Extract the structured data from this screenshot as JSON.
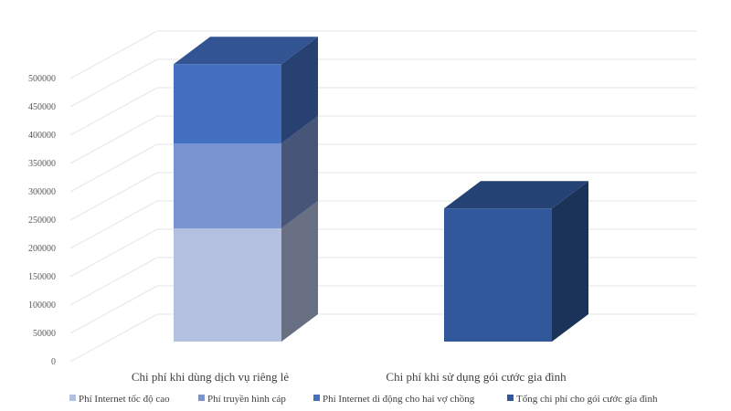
{
  "chart_data": {
    "type": "bar",
    "stacked": true,
    "three_d": true,
    "categories": [
      "Chi phí khi dùng dịch vụ riêng lẻ",
      "Chi phí khi sử dụng gói cước gia đình"
    ],
    "series": [
      {
        "name": "Phí Internet tốc độ cao",
        "values": [
          200000,
          0
        ],
        "color": "#b4c0e0"
      },
      {
        "name": "Phí truyền hình cáp",
        "values": [
          150000,
          0
        ],
        "color": "#7a93d1"
      },
      {
        "name": "Phí Internet di động cho hai vợ chồng",
        "values": [
          140000,
          0
        ],
        "color": "#4470c2"
      },
      {
        "name": "Tổng chi phí cho gói cước gia đình",
        "values": [
          0,
          235000
        ],
        "color": "#30589a"
      }
    ],
    "ylim": [
      0,
      500000
    ],
    "yticks": [
      0,
      50000,
      100000,
      150000,
      200000,
      250000,
      300000,
      350000,
      400000,
      450000,
      500000
    ],
    "grid": true,
    "legend_position": "bottom",
    "title": "",
    "xlabel": "",
    "ylabel": ""
  }
}
